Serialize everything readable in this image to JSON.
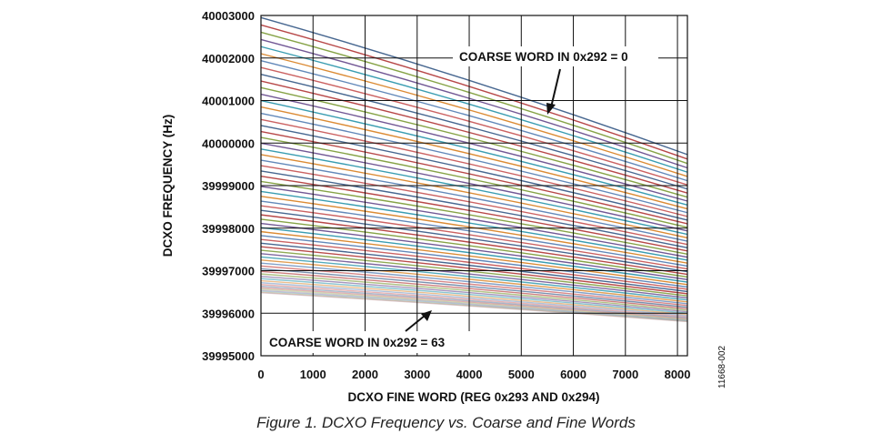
{
  "caption": "Figure 1. DCXO Frequency vs. Coarse and Fine Words",
  "figure_id": "11668-002",
  "chart_data": {
    "type": "line",
    "xlabel": "DCXO FINE WORD (REG 0x293 AND 0x294)",
    "ylabel": "DCXO FREQUENCY (Hz)",
    "xlim": [
      0,
      8191
    ],
    "ylim": [
      39995000,
      40003000
    ],
    "x_ticks": [
      "0",
      "1000",
      "2000",
      "3000",
      "4000",
      "5000",
      "6000",
      "7000",
      "8000"
    ],
    "y_ticks": [
      "40003000",
      "40002000",
      "40001000",
      "40000000",
      "39999000",
      "39998000",
      "39997000",
      "39996000",
      "39995000"
    ],
    "grid": true,
    "series_count": 64,
    "coarse_word_range": [
      0,
      63
    ],
    "x": [
      0,
      8191
    ],
    "curve_model": "approximately linear decrease in frequency with fine word; higher coarse word shifts curve down with decreasing spacing",
    "series_endpoints": {
      "coarse_0": {
        "start": 40002950,
        "end": 39999730
      },
      "coarse_63": {
        "start": 39996480,
        "end": 39995800
      }
    },
    "colors": [
      "#3d5f8a",
      "#b33e3e",
      "#7f9e3d",
      "#6a4f8f",
      "#2f98ad",
      "#d9852a",
      "#5a82b5",
      "#c85a5a"
    ],
    "annotations": [
      {
        "text": "COARSE WORD IN 0x292 = 0"
      },
      {
        "text": "COARSE WORD IN 0x292 = 63"
      }
    ]
  }
}
